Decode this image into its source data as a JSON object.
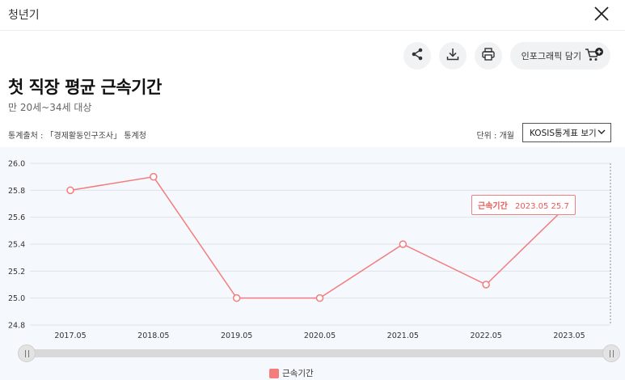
{
  "window": {
    "title": "청년기"
  },
  "toolbar": {
    "cart_label": "인포그래픽 담기"
  },
  "header": {
    "title": "첫 직장 평균 근속기간",
    "subtitle": "만 20세~34세 대상"
  },
  "meta": {
    "source": "통계출처 : 「경제활동인구조사」 통계청",
    "unit": "단위 : 개월",
    "kosis_label": "KOSIS통계표 보기"
  },
  "colors": {
    "series": "#f47c7c",
    "grid": "#dde3ea",
    "chart_bg": "#f5f8fc"
  },
  "tooltip": {
    "series": "근속기간",
    "x": "2023.05",
    "y": "25.7"
  },
  "chart_data": {
    "type": "line",
    "categories": [
      "2017.05",
      "2018.05",
      "2019.05",
      "2020.05",
      "2021.05",
      "2022.05",
      "2023.05"
    ],
    "series": [
      {
        "name": "근속기간",
        "values": [
          25.8,
          25.9,
          25.0,
          25.0,
          25.4,
          25.1,
          25.7
        ]
      }
    ],
    "ylim": [
      24.8,
      26.0
    ],
    "yticks": [
      "24.8",
      "25.0",
      "25.2",
      "25.4",
      "25.6",
      "25.8",
      "26.0"
    ],
    "grid": true,
    "legend": "bottom-center"
  }
}
